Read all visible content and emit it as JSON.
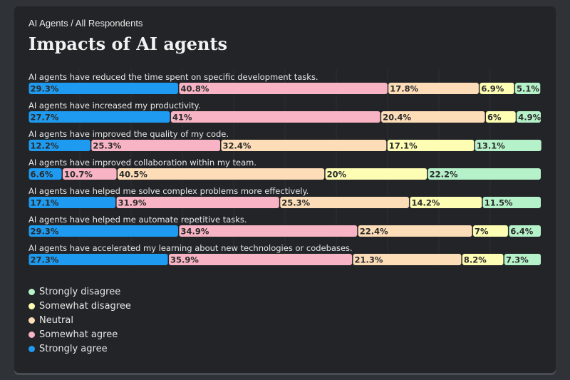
{
  "breadcrumb": "AI Agents / All Respondents",
  "title": "Impacts of AI agents",
  "legend": [
    {
      "label": "Strongly disagree",
      "color": "#b6f2c9"
    },
    {
      "label": "Somewhat disagree",
      "color": "#fdfdb4"
    },
    {
      "label": "Neutral",
      "color": "#fddcb8"
    },
    {
      "label": "Somewhat agree",
      "color": "#f8b4c4"
    },
    {
      "label": "Strongly agree",
      "color": "#1e9bf0"
    }
  ],
  "chart_data": {
    "type": "bar",
    "orientation": "horizontal",
    "stacked": true,
    "title": "Impacts of AI agents",
    "categories": [
      "AI agents have reduced the time spent on specific development tasks.",
      "AI agents have increased my productivity.",
      "AI agents have improved the quality of my code.",
      "AI agents have improved collaboration within my team.",
      "AI agents have helped me solve complex problems more effectively.",
      "AI agents have helped me automate repetitive tasks.",
      "AI agents have accelerated my learning about new technologies or codebases."
    ],
    "series": [
      {
        "name": "Strongly agree",
        "color": "#1e9bf0",
        "values": [
          29.3,
          27.7,
          12.2,
          6.6,
          17.1,
          29.3,
          27.3
        ]
      },
      {
        "name": "Somewhat agree",
        "color": "#f8b4c4",
        "values": [
          40.8,
          41,
          25.3,
          10.7,
          31.9,
          34.9,
          35.9
        ]
      },
      {
        "name": "Neutral",
        "color": "#fddcb8",
        "values": [
          17.8,
          20.4,
          32.4,
          40.5,
          25.3,
          22.4,
          21.3
        ]
      },
      {
        "name": "Somewhat disagree",
        "color": "#fdfdb4",
        "values": [
          6.9,
          6,
          17.1,
          20,
          14.2,
          7,
          8.2
        ]
      },
      {
        "name": "Strongly disagree",
        "color": "#b6f2c9",
        "values": [
          5.1,
          4.9,
          13.1,
          22.2,
          11.5,
          6.4,
          7.3
        ]
      }
    ],
    "value_suffix": "%",
    "xlim": [
      0,
      100
    ],
    "legend_position": "bottom-left"
  }
}
